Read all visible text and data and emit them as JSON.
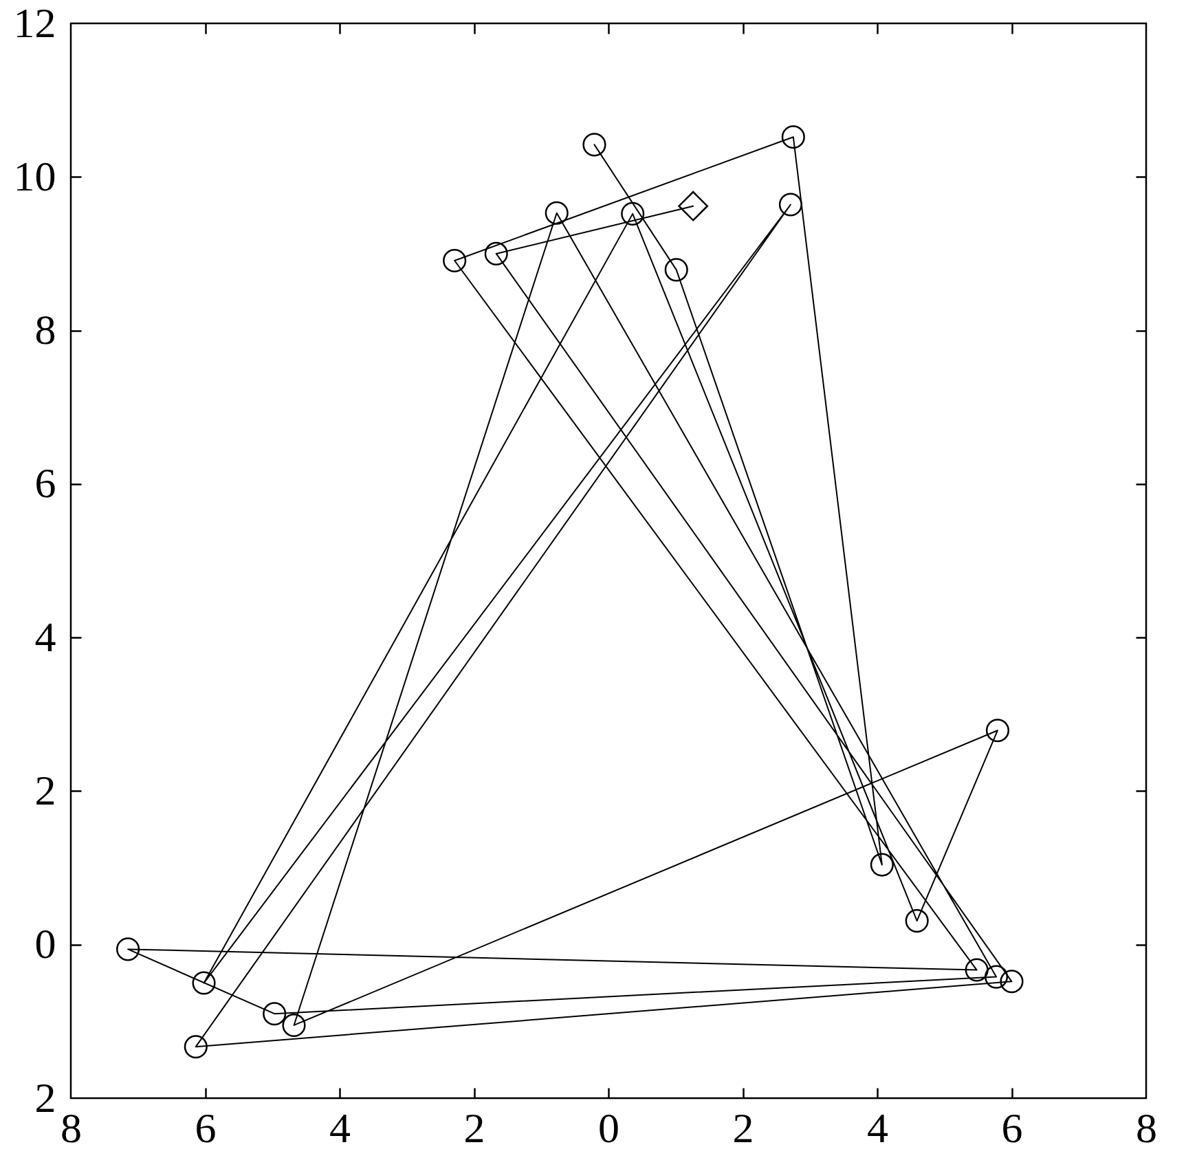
{
  "chart_data": {
    "type": "line",
    "xlim": [
      -8,
      8
    ],
    "ylim": [
      -2,
      12
    ],
    "xticks": [
      {
        "value": -8,
        "label": "8"
      },
      {
        "value": -6,
        "label": "6"
      },
      {
        "value": -4,
        "label": "4"
      },
      {
        "value": -2,
        "label": "2"
      },
      0,
      2,
      4,
      6,
      8
    ],
    "yticks": [
      {
        "value": -2,
        "label": "2"
      },
      0,
      2,
      4,
      6,
      8,
      10,
      12
    ],
    "series": [
      {
        "color": "#000000",
        "marker": "none",
        "line_style": "solid",
        "x": [
          -0.21,
          1.01,
          4.07,
          2.75,
          -2.29,
          5.48,
          -7.15,
          -4.97,
          5.77,
          -0.77,
          -4.68,
          5.79,
          4.59,
          0.36,
          -6.02,
          2.71,
          -6.14,
          6.0,
          -1.67,
          1.26
        ],
        "values": [
          10.42,
          8.79,
          1.04,
          10.52,
          8.91,
          -0.33,
          -0.06,
          -0.9,
          -0.42,
          9.53,
          -1.05,
          2.79,
          0.31,
          9.52,
          -0.5,
          9.64,
          -1.33,
          -0.48,
          9.0,
          9.62
        ]
      },
      {
        "type": "scatter",
        "color": "#000000",
        "marker": "circle",
        "x": [
          -0.21,
          1.01,
          4.07,
          2.75,
          -2.29,
          5.48,
          -7.15,
          -4.97,
          5.77,
          -0.77,
          -4.68,
          5.79,
          4.59,
          0.36,
          -6.02,
          2.71,
          -6.14,
          6.0,
          -1.67
        ],
        "values": [
          10.42,
          8.79,
          1.04,
          10.52,
          8.91,
          -0.33,
          -0.06,
          -0.9,
          -0.42,
          9.53,
          -1.05,
          2.79,
          0.31,
          9.52,
          -0.5,
          9.64,
          -1.33,
          -0.48,
          9.0
        ]
      },
      {
        "type": "scatter",
        "color": "#000000",
        "marker": "diamond",
        "x": [
          1.26
        ],
        "values": [
          9.62
        ]
      }
    ]
  }
}
